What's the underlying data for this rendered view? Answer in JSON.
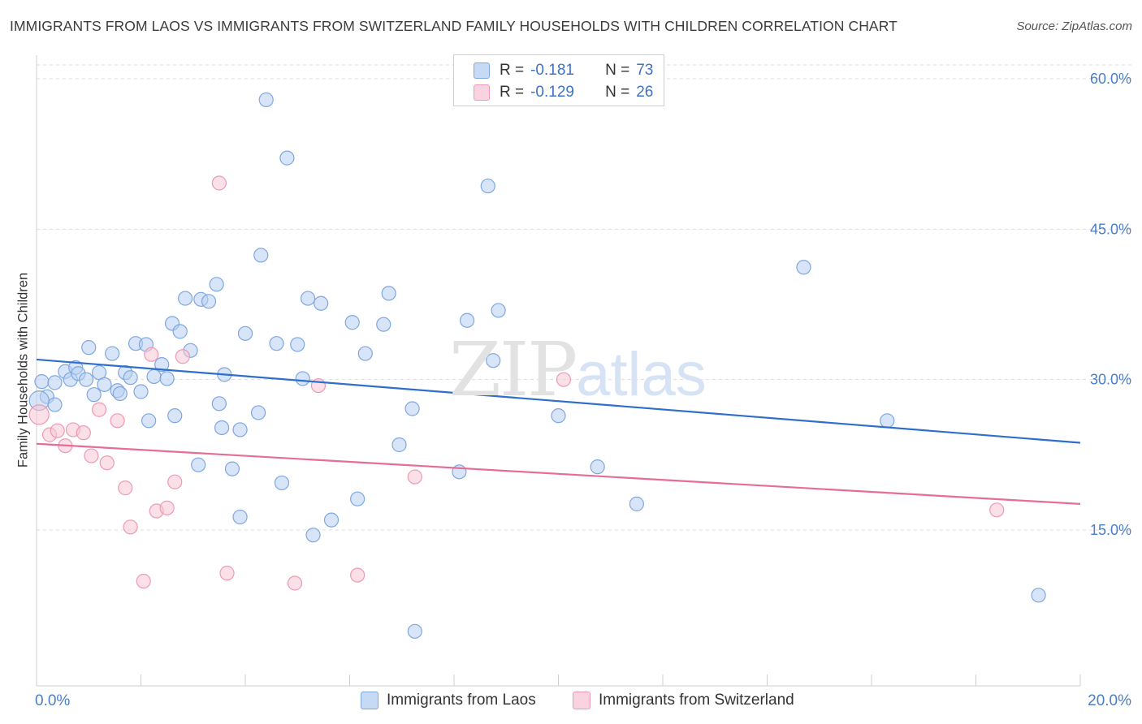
{
  "title": "IMMIGRANTS FROM LAOS VS IMMIGRANTS FROM SWITZERLAND FAMILY HOUSEHOLDS WITH CHILDREN CORRELATION CHART",
  "source": "Source: ZipAtlas.com",
  "watermark": {
    "zip": "ZIP",
    "atlas": "atlas"
  },
  "legend": {
    "rows": [
      {
        "r_label": "R =",
        "r_value": "-0.181",
        "n_label": "N =",
        "n_value": "73"
      },
      {
        "r_label": "R =",
        "r_value": "-0.129",
        "n_label": "N =",
        "n_value": "26"
      }
    ]
  },
  "x_axis": {
    "min_label": "0.0%",
    "max_label": "20.0%"
  },
  "colors": {
    "laos_fill": "#b8d0f3",
    "laos_stroke": "#7ea7e0",
    "laos_line": "#2f6fcb",
    "swiss_fill": "#f8c6d6",
    "swiss_stroke": "#ec9ab4",
    "swiss_line": "#e56d96",
    "tick_label": "#4a7ec9",
    "grid": "#dcdcdc"
  },
  "chart_data": {
    "type": "scatter",
    "title": "IMMIGRANTS FROM LAOS VS IMMIGRANTS FROM SWITZERLAND FAMILY HOUSEHOLDS WITH CHILDREN CORRELATION CHART",
    "xlabel": "",
    "ylabel": "Family Households with Children",
    "xlim": [
      0,
      20
    ],
    "ylim": [
      0,
      63
    ],
    "y_ticks": [
      15,
      30,
      45,
      60
    ],
    "y_tick_labels": [
      "15.0%",
      "30.0%",
      "45.0%",
      "60.0%"
    ],
    "x_tick_labels": [
      "0.0%",
      "20.0%"
    ],
    "grid": true,
    "legend_position": "top-center",
    "series": [
      {
        "name": "Immigrants from Laos",
        "color": "#7ea7e0",
        "R": -0.181,
        "N": 73,
        "trend": {
          "x": [
            0,
            20
          ],
          "y": [
            32.0,
            23.7
          ]
        },
        "points": [
          [
            0.1,
            29.8
          ],
          [
            0.2,
            28.3
          ],
          [
            0.35,
            27.5
          ],
          [
            0.35,
            29.7
          ],
          [
            0.55,
            30.8
          ],
          [
            0.65,
            30.0
          ],
          [
            0.75,
            31.2
          ],
          [
            0.8,
            30.6
          ],
          [
            0.95,
            30.0
          ],
          [
            1.0,
            33.2
          ],
          [
            1.1,
            28.5
          ],
          [
            1.2,
            30.7
          ],
          [
            1.3,
            29.5
          ],
          [
            1.45,
            32.6
          ],
          [
            1.55,
            28.9
          ],
          [
            1.6,
            28.6
          ],
          [
            1.7,
            30.7
          ],
          [
            1.8,
            30.2
          ],
          [
            1.9,
            33.6
          ],
          [
            2.0,
            28.8
          ],
          [
            2.1,
            33.5
          ],
          [
            2.15,
            25.9
          ],
          [
            2.25,
            30.3
          ],
          [
            2.4,
            31.5
          ],
          [
            2.5,
            30.1
          ],
          [
            2.6,
            35.6
          ],
          [
            2.65,
            26.4
          ],
          [
            2.75,
            34.8
          ],
          [
            2.85,
            38.1
          ],
          [
            2.95,
            32.9
          ],
          [
            3.1,
            21.5
          ],
          [
            3.15,
            38.0
          ],
          [
            3.3,
            37.8
          ],
          [
            3.45,
            39.5
          ],
          [
            3.5,
            27.6
          ],
          [
            3.55,
            25.2
          ],
          [
            3.6,
            30.5
          ],
          [
            3.75,
            21.1
          ],
          [
            3.9,
            25.0
          ],
          [
            3.9,
            16.3
          ],
          [
            4.0,
            34.6
          ],
          [
            4.25,
            26.7
          ],
          [
            4.3,
            42.4
          ],
          [
            4.4,
            57.9
          ],
          [
            4.6,
            33.6
          ],
          [
            4.7,
            19.7
          ],
          [
            4.8,
            52.1
          ],
          [
            5.0,
            33.5
          ],
          [
            5.1,
            30.1
          ],
          [
            5.2,
            38.1
          ],
          [
            5.3,
            14.5
          ],
          [
            5.45,
            37.6
          ],
          [
            5.65,
            16.0
          ],
          [
            6.05,
            35.7
          ],
          [
            6.15,
            18.1
          ],
          [
            6.3,
            32.6
          ],
          [
            6.65,
            35.5
          ],
          [
            6.75,
            38.6
          ],
          [
            6.95,
            23.5
          ],
          [
            7.2,
            27.1
          ],
          [
            7.25,
            4.9
          ],
          [
            8.1,
            20.8
          ],
          [
            8.25,
            35.9
          ],
          [
            8.65,
            49.3
          ],
          [
            8.75,
            31.9
          ],
          [
            8.85,
            36.9
          ],
          [
            10.0,
            26.4
          ],
          [
            10.75,
            21.3
          ],
          [
            11.5,
            17.6
          ],
          [
            14.7,
            41.2
          ],
          [
            16.3,
            25.9
          ],
          [
            19.2,
            8.5
          ],
          [
            0.05,
            27.9
          ]
        ]
      },
      {
        "name": "Immigrants from Switzerland",
        "color": "#ec9ab4",
        "R": -0.129,
        "N": 26,
        "trend": {
          "x": [
            0,
            20
          ],
          "y": [
            23.6,
            17.6
          ]
        },
        "points": [
          [
            0.05,
            26.5
          ],
          [
            0.25,
            24.5
          ],
          [
            0.4,
            24.9
          ],
          [
            0.55,
            23.4
          ],
          [
            0.7,
            25.0
          ],
          [
            0.9,
            24.7
          ],
          [
            1.05,
            22.4
          ],
          [
            1.2,
            27.0
          ],
          [
            1.35,
            21.7
          ],
          [
            1.55,
            25.9
          ],
          [
            1.7,
            19.2
          ],
          [
            1.8,
            15.3
          ],
          [
            2.05,
            9.9
          ],
          [
            2.2,
            32.5
          ],
          [
            2.3,
            16.9
          ],
          [
            2.5,
            17.2
          ],
          [
            2.65,
            19.8
          ],
          [
            2.8,
            32.3
          ],
          [
            3.5,
            49.6
          ],
          [
            3.65,
            10.7
          ],
          [
            4.95,
            9.7
          ],
          [
            5.4,
            29.4
          ],
          [
            6.15,
            10.5
          ],
          [
            7.25,
            20.3
          ],
          [
            10.1,
            30.0
          ],
          [
            18.4,
            17.0
          ]
        ]
      }
    ]
  }
}
